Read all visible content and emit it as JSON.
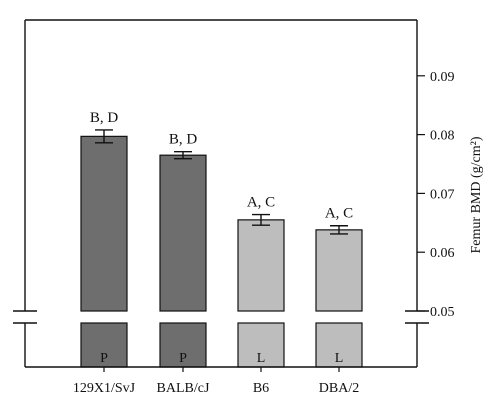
{
  "chart_data": {
    "type": "bar",
    "categories": [
      "129X1/SvJ",
      "BALB/cJ",
      "B6",
      "DBA/2"
    ],
    "values": [
      0.0797,
      0.0765,
      0.0655,
      0.0638
    ],
    "errors": [
      0.0011,
      0.0006,
      0.0009,
      0.0007
    ],
    "significance_labels": [
      "B, D",
      "B, D",
      "A, C",
      "A, C"
    ],
    "group_labels": [
      "P",
      "P",
      "L",
      "L"
    ],
    "ylabel": "Femur BMD (g/cm²)",
    "xlabel": "",
    "ylim": [
      0.05,
      0.1
    ],
    "yticks": [
      0.05,
      0.06,
      0.07,
      0.08,
      0.09
    ],
    "ytick_labels": [
      "0.05",
      "0.06",
      "0.07",
      "0.08",
      "0.09"
    ],
    "y_axis_side": "right",
    "axis_break": true,
    "grid": false,
    "colors": {
      "P": "#6e6e6e",
      "L": "#bdbdbd",
      "axis": "#111111"
    }
  }
}
